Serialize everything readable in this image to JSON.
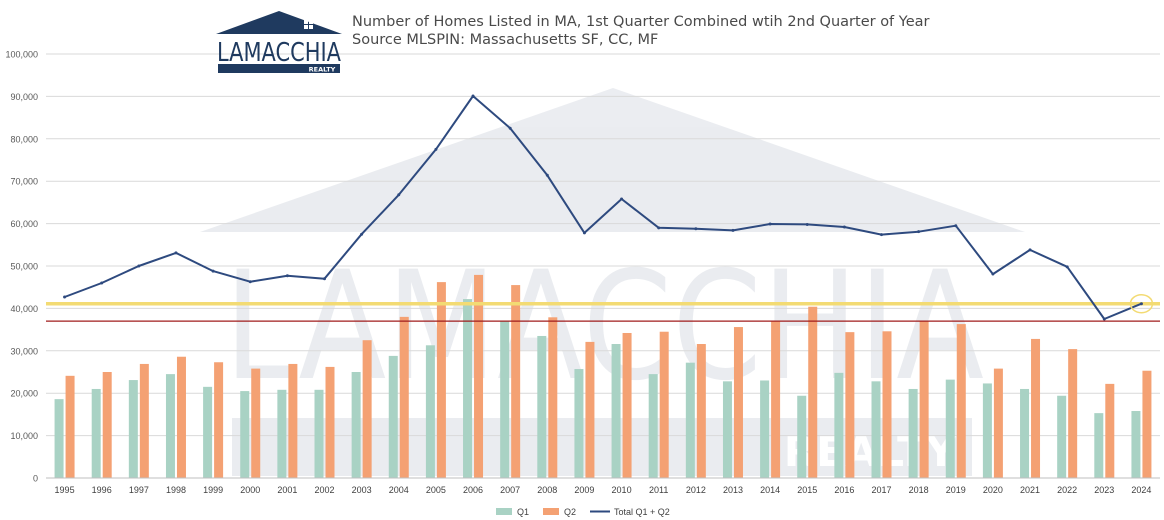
{
  "header": {
    "title_line1": "Number of Homes Listed in MA, 1st Quarter Combined wtih 2nd Quarter of Year",
    "title_line2": "Source MLSPIN: Massachusetts SF, CC, MF"
  },
  "logo": {
    "brand": "LAMACCHIA",
    "sub": "REALTY",
    "color": "#1f3a5f"
  },
  "watermark": {
    "brand": "LAMACCHIA",
    "sub": "REALTY"
  },
  "colors": {
    "q1": "#a9d2c4",
    "q2": "#f4a173",
    "total": "#2e4a7f",
    "highlight_line": "#f3db73",
    "reference_line": "#a01c1c",
    "grid": "#d9d9d9"
  },
  "chart_data": {
    "type": "bar",
    "categories": [
      "1995",
      "1996",
      "1997",
      "1998",
      "1999",
      "2000",
      "2001",
      "2002",
      "2003",
      "2004",
      "2005",
      "2006",
      "2007",
      "2008",
      "2009",
      "2010",
      "2011",
      "2012",
      "2013",
      "2014",
      "2015",
      "2016",
      "2017",
      "2018",
      "2019",
      "2020",
      "2021",
      "2022",
      "2023",
      "2024"
    ],
    "series": [
      {
        "name": "Q1",
        "type": "bar",
        "values": [
          18600,
          21000,
          23100,
          24500,
          21500,
          20500,
          20800,
          20800,
          25000,
          28800,
          31300,
          42200,
          37000,
          33500,
          25700,
          31600,
          24500,
          27200,
          22800,
          23000,
          19400,
          24800,
          22800,
          21000,
          23200,
          22300,
          21000,
          19400,
          15300,
          15800
        ]
      },
      {
        "name": "Q2",
        "type": "bar",
        "values": [
          24100,
          25000,
          26900,
          28600,
          27300,
          25800,
          26900,
          26200,
          32500,
          38000,
          46200,
          47900,
          45500,
          37900,
          32100,
          34200,
          34500,
          31600,
          35600,
          36900,
          40400,
          34400,
          34600,
          37100,
          36300,
          25800,
          32800,
          30400,
          22200,
          25300
        ]
      },
      {
        "name": "Total Q1 + Q2",
        "type": "line",
        "values": [
          42700,
          46000,
          50000,
          53100,
          48800,
          46300,
          47700,
          47000,
          57500,
          66800,
          77500,
          90100,
          82500,
          71400,
          57800,
          65800,
          59000,
          58800,
          58400,
          59900,
          59800,
          59200,
          57400,
          58100,
          59500,
          48100,
          53800,
          49800,
          37500,
          41100
        ]
      }
    ],
    "ylim": [
      0,
      100000
    ],
    "yticks": [
      "0",
      "10,000",
      "20,000",
      "30,000",
      "40,000",
      "50,000",
      "60,000",
      "70,000",
      "80,000",
      "90,000",
      "100,000"
    ],
    "reference_lines": [
      {
        "value": 41100,
        "color": "#f3db73",
        "style": "thick"
      },
      {
        "value": 37000,
        "color": "#a01c1c",
        "style": "thin"
      }
    ],
    "highlight_point": {
      "category": "2024",
      "value": 41100
    },
    "grid": true,
    "legend_position": "bottom-center"
  }
}
